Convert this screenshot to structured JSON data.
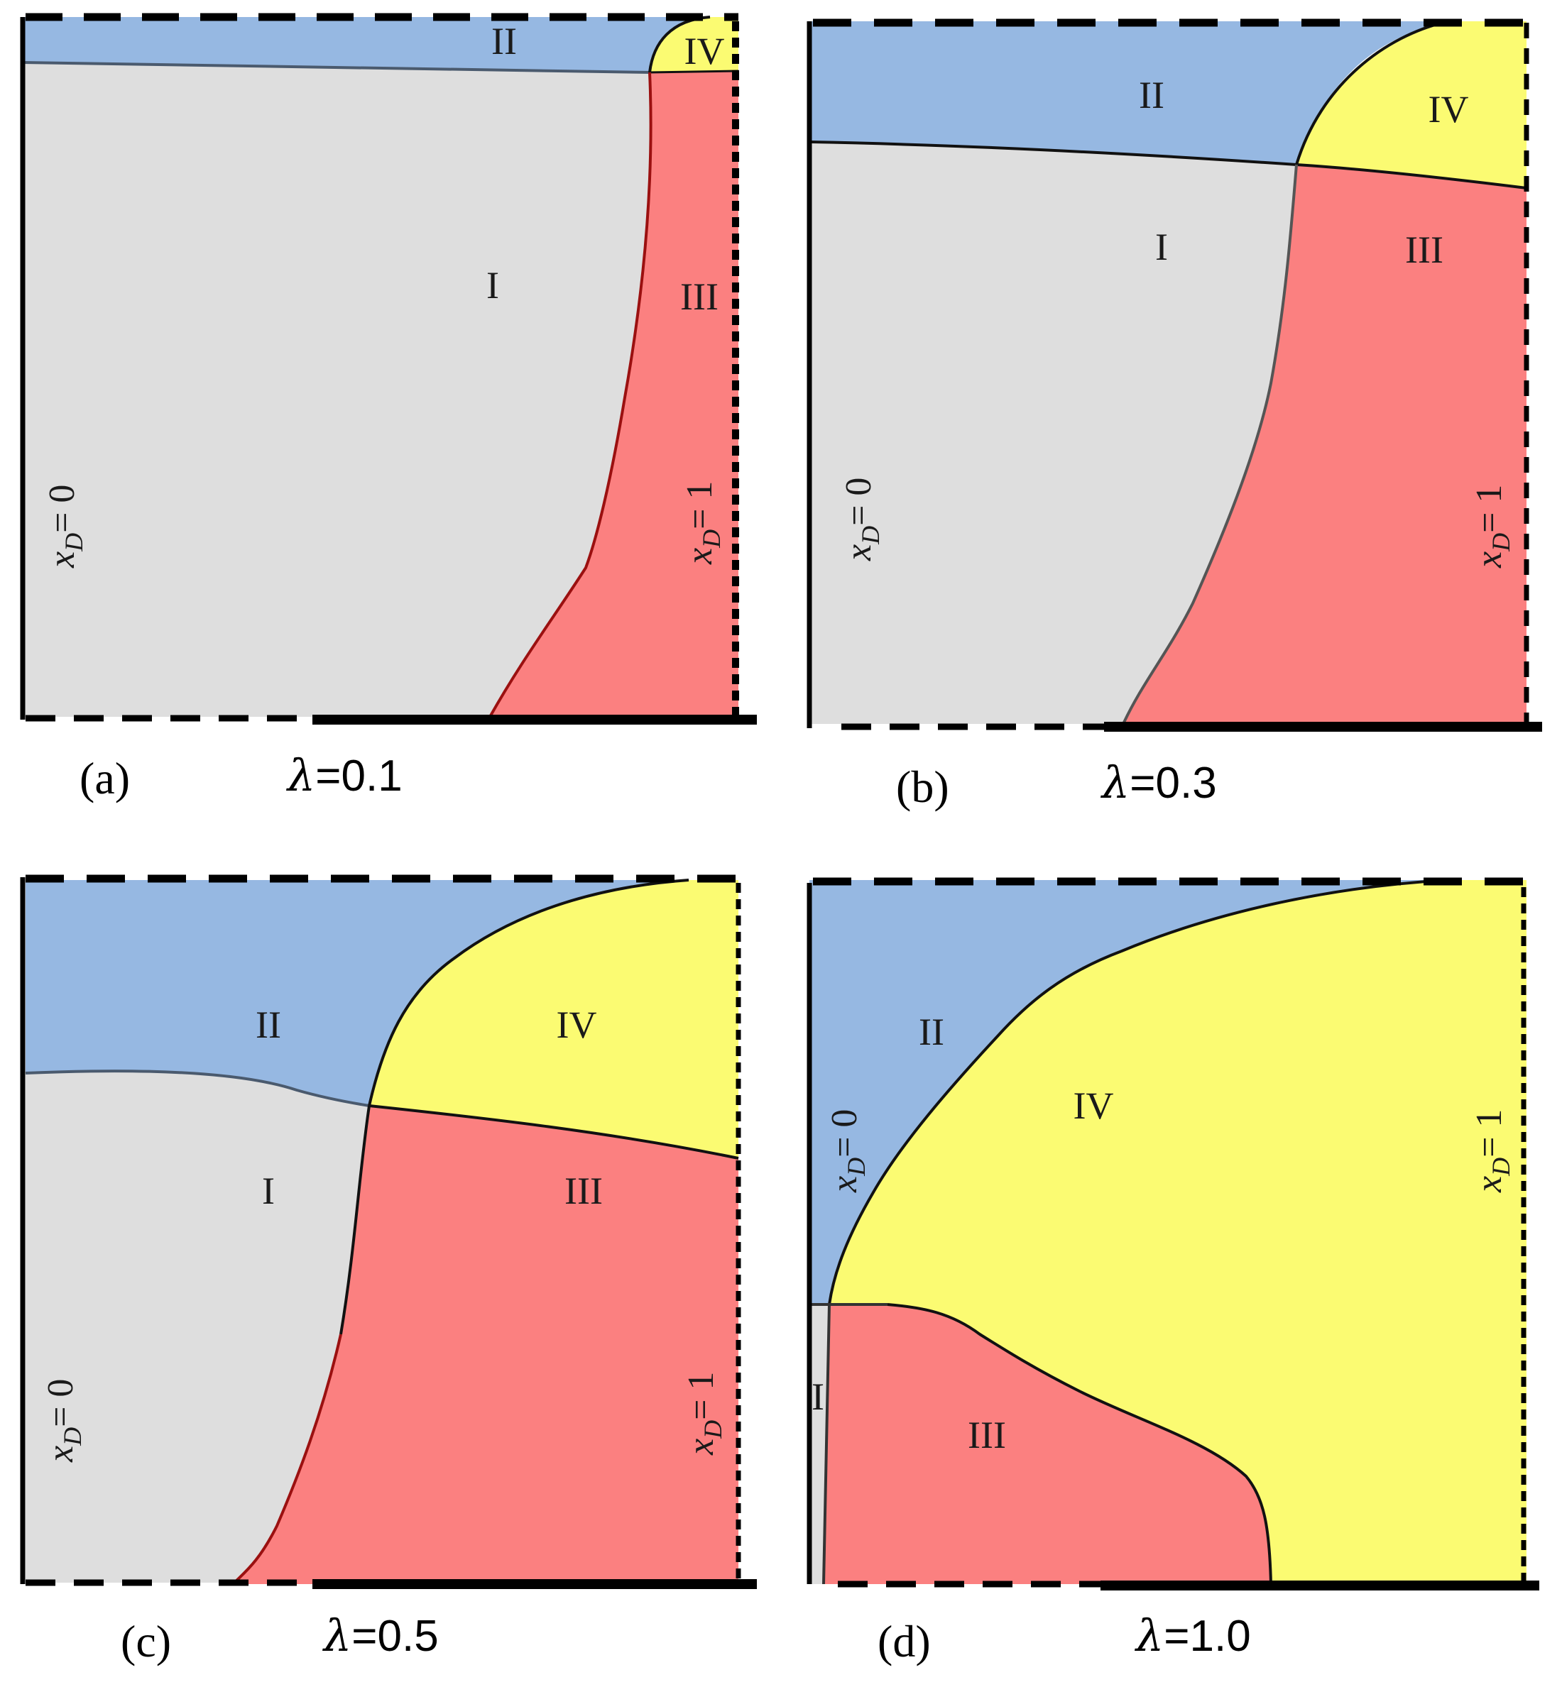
{
  "colors": {
    "region_I": "#dedede",
    "region_II": "#96b8e2",
    "region_III": "#fb8080",
    "region_IV": "#fbfb72",
    "boundary_I_II": "#4a5a6e",
    "boundary_III": "#9b1010",
    "boundary_IV": "#111111"
  },
  "panels": [
    {
      "tag": "(a)",
      "lambda_symbol": "λ",
      "lambda_text": "=0.1",
      "lambda_value": 0.1,
      "regions": {
        "I": "I",
        "II": "II",
        "III": "III",
        "IV": "IV"
      },
      "left_boundary_label": "x",
      "left_boundary_sub": "D",
      "left_boundary_value": "= 0",
      "right_boundary_label": "x",
      "right_boundary_sub": "D",
      "right_boundary_value": "= 1"
    },
    {
      "tag": "(b)",
      "lambda_symbol": "λ",
      "lambda_text": "=0.3",
      "lambda_value": 0.3,
      "regions": {
        "I": "I",
        "II": "II",
        "III": "III",
        "IV": "IV"
      },
      "left_boundary_label": "x",
      "left_boundary_sub": "D",
      "left_boundary_value": "= 0",
      "right_boundary_label": "x",
      "right_boundary_sub": "D",
      "right_boundary_value": "= 1"
    },
    {
      "tag": "(c)",
      "lambda_symbol": "λ",
      "lambda_text": "=0.5",
      "lambda_value": 0.5,
      "regions": {
        "I": "I",
        "II": "II",
        "III": "III",
        "IV": "IV"
      },
      "left_boundary_label": "x",
      "left_boundary_sub": "D",
      "left_boundary_value": "= 0",
      "right_boundary_label": "x",
      "right_boundary_sub": "D",
      "right_boundary_value": "= 1"
    },
    {
      "tag": "(d)",
      "lambda_symbol": "λ",
      "lambda_text": "=1.0",
      "lambda_value": 1.0,
      "regions": {
        "I": "I",
        "II": "II",
        "III": "III",
        "IV": "IV"
      },
      "left_boundary_label": "x",
      "left_boundary_sub": "D",
      "left_boundary_value": "= 0",
      "right_boundary_label": "x",
      "right_boundary_sub": "D",
      "right_boundary_value": "= 1"
    }
  ]
}
